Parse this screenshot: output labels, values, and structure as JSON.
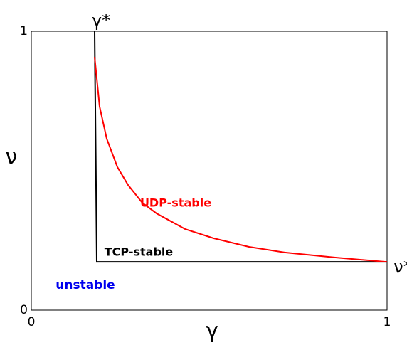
{
  "chart_data": {
    "type": "line",
    "xlabel": "γ",
    "ylabel": "ν",
    "xlim": [
      0,
      1
    ],
    "ylim": [
      0,
      1
    ],
    "xticks": [
      0,
      1
    ],
    "yticks": [
      0,
      1
    ],
    "series": [
      {
        "color": "#000000",
        "x": [
          0.178,
          0.184,
          1.0
        ],
        "values": [
          1.0,
          0.173,
          0.173
        ]
      },
      {
        "color": "#ff0000",
        "x": [
          0.178,
          0.192,
          0.212,
          0.242,
          0.272,
          0.312,
          0.352,
          0.432,
          0.512,
          0.612,
          0.712,
          0.852,
          1.0
        ],
        "values": [
          0.908,
          0.73,
          0.615,
          0.513,
          0.449,
          0.385,
          0.347,
          0.291,
          0.258,
          0.227,
          0.207,
          0.189,
          0.173
        ]
      }
    ],
    "annotations": [
      {
        "text": "γ*",
        "color": "#000000"
      },
      {
        "text": "ν*",
        "color": "#000000"
      },
      {
        "text": "UDP-stable",
        "color": "#ff0000"
      },
      {
        "text": "TCP-stable",
        "color": "#000000"
      },
      {
        "text": "unstable",
        "color": "#0000ee"
      }
    ]
  }
}
